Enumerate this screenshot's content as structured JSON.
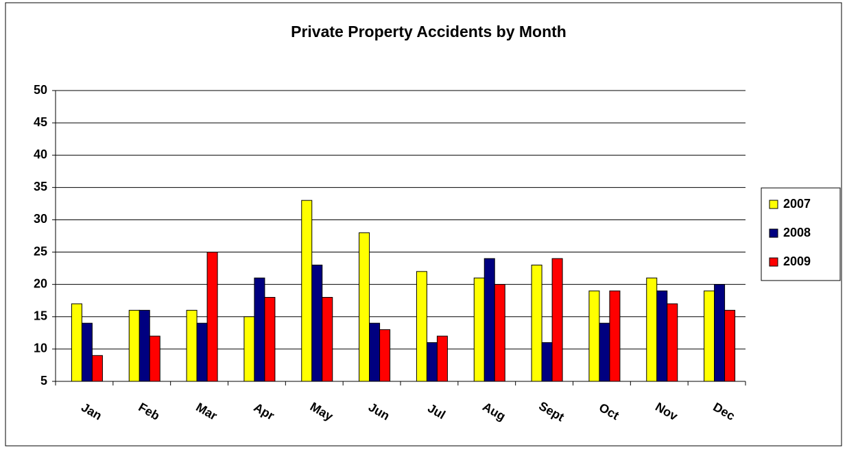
{
  "chart_data": {
    "type": "bar",
    "title": "Private Property Accidents by Month",
    "categories": [
      "Jan",
      "Feb",
      "Mar",
      "Apr",
      "May",
      "Jun",
      "Jul",
      "Aug",
      "Sept",
      "Oct",
      "Nov",
      "Dec"
    ],
    "series": [
      {
        "name": "2007",
        "color": "#ffff00",
        "values": [
          17,
          16,
          16,
          15,
          33,
          28,
          22,
          21,
          23,
          19,
          21,
          19
        ]
      },
      {
        "name": "2008",
        "color": "#000080",
        "values": [
          14,
          16,
          14,
          21,
          23,
          14,
          11,
          24,
          11,
          14,
          19,
          20
        ]
      },
      {
        "name": "2009",
        "color": "#ff0000",
        "values": [
          9,
          12,
          25,
          18,
          18,
          13,
          12,
          20,
          24,
          19,
          17,
          16
        ]
      }
    ],
    "ylim": [
      5,
      50
    ],
    "yticks": [
      5,
      10,
      15,
      20,
      25,
      30,
      35,
      40,
      45,
      50
    ],
    "grid": true,
    "legend": "right"
  }
}
